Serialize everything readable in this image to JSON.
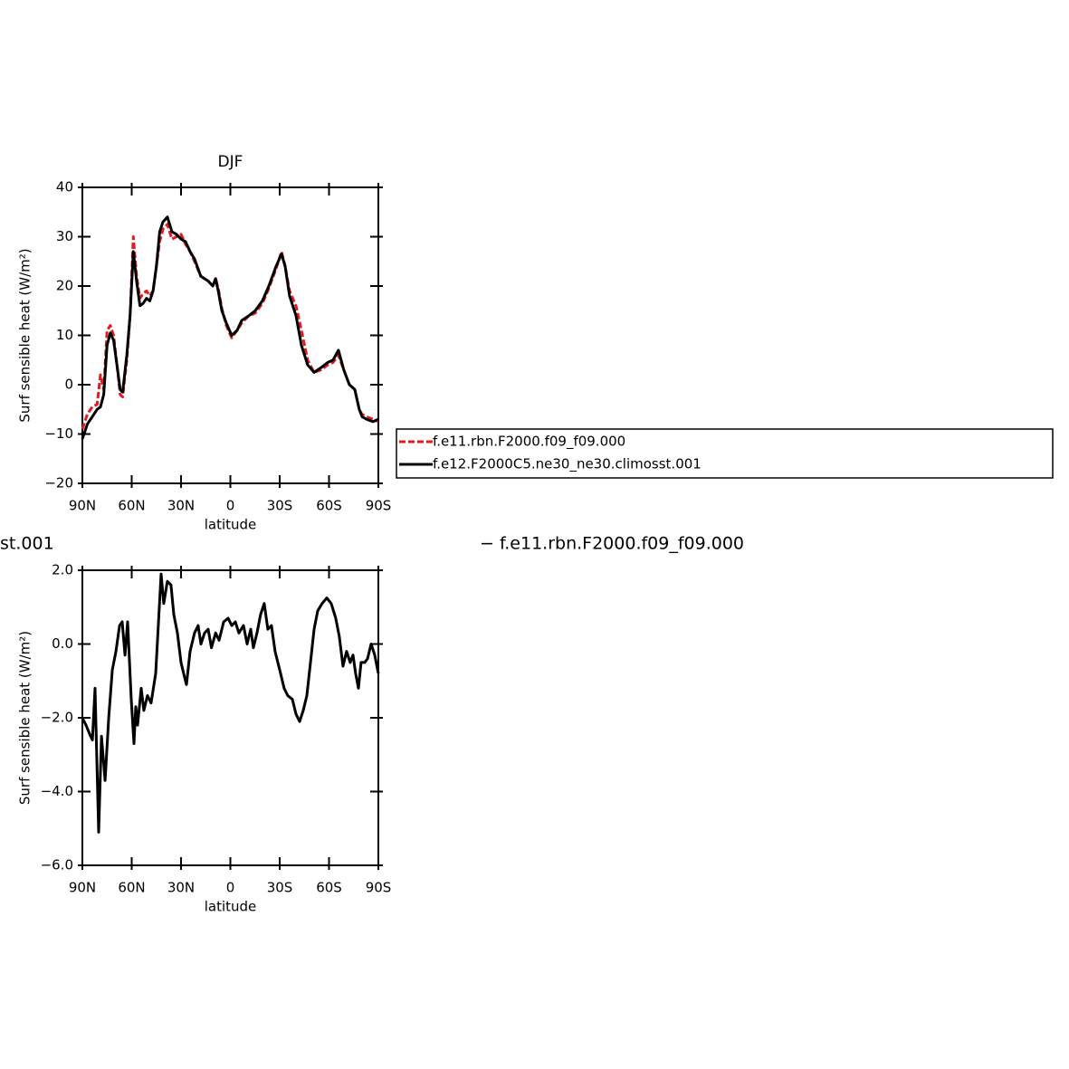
{
  "chart_data": [
    {
      "type": "line",
      "title": "DJF",
      "xlabel": "latitude",
      "ylabel": "Surf sensible heat (W/m²)",
      "x": [
        90,
        87,
        84,
        81,
        79,
        77,
        75,
        73,
        71,
        69,
        67,
        65.5,
        63,
        61,
        59,
        57,
        55,
        53,
        51,
        49,
        47,
        45,
        43,
        41,
        38.3,
        35.5,
        32.8,
        30,
        27.3,
        24.5,
        21.8,
        18,
        13.5,
        10.7,
        9,
        7.4,
        5.2,
        2.5,
        -0.8,
        -4.1,
        -6.9,
        -11.3,
        -15.1,
        -19.5,
        -23.4,
        -27.8,
        -31.1,
        -33.3,
        -36,
        -39.9,
        -43.2,
        -47,
        -50.9,
        -55.3,
        -59.1,
        -62.4,
        -65.7,
        -69,
        -72.4,
        -75.7,
        -78.4,
        -80.1,
        -82.8,
        -86.7,
        -90
      ],
      "series": [
        {
          "name": "f.e11.rbn.F2000.f09_f09.000",
          "color": "#e41a1c",
          "dash": true,
          "values": [
            -9,
            -6,
            -4.5,
            -4,
            2,
            -1,
            11,
            12,
            10,
            4,
            -2,
            -2.5,
            5,
            14,
            30,
            22,
            17.5,
            18.5,
            19,
            18,
            19,
            24,
            29,
            31.5,
            32.5,
            29.5,
            30,
            30.5,
            28.5,
            27,
            25,
            22,
            21,
            20,
            21.5,
            19.5,
            15.5,
            12,
            9.5,
            11,
            12.5,
            14,
            14.5,
            16.5,
            19.5,
            23.5,
            27,
            24,
            19,
            16,
            11,
            5,
            2.5,
            3,
            4,
            4.5,
            6,
            3,
            0,
            -1,
            -5,
            -6,
            -6.5,
            -7,
            -7.5
          ]
        },
        {
          "name": "f.e12.F2000C5.ne30_ne30.climosst.001",
          "color": "#000000",
          "dash": false,
          "values": [
            -11,
            -8,
            -6.5,
            -5,
            -4.5,
            -2,
            8,
            10.5,
            9,
            4,
            -1,
            -1.5,
            6,
            14,
            27,
            21,
            16,
            16.5,
            17.5,
            17,
            19,
            24,
            31,
            33,
            34,
            31,
            30.5,
            29.5,
            29,
            27,
            25.5,
            22,
            21,
            20,
            21.5,
            19,
            15,
            12.5,
            10,
            11,
            13,
            14,
            15,
            17,
            20,
            24,
            26.5,
            24,
            18,
            14,
            8,
            4,
            2.5,
            3.5,
            4.5,
            5,
            7,
            3,
            0,
            -1,
            -5,
            -6.5,
            -7,
            -7.5,
            -7
          ]
        }
      ],
      "xlim": [
        90,
        -90
      ],
      "xticks": [
        {
          "value": 90,
          "label": "90N"
        },
        {
          "value": 60,
          "label": "60N"
        },
        {
          "value": 30,
          "label": "30N"
        },
        0,
        {
          "value": -30,
          "label": "30S"
        },
        {
          "value": -60,
          "label": "60S"
        },
        {
          "value": -90,
          "label": "90S"
        }
      ],
      "ylim": [
        -20,
        40
      ],
      "yticks": [
        40,
        30,
        20,
        10,
        0,
        {
          "value": -10,
          "label": "−10"
        },
        {
          "value": -20,
          "label": "−20"
        }
      ]
    },
    {
      "type": "line",
      "xlabel": "latitude",
      "ylabel": "Surf sensible heat (W/m²)",
      "annotations": [
        "st.001",
        "− f.e11.rbn.F2000.f09_f09.000"
      ],
      "x": [
        90,
        87.8,
        85,
        83.9,
        82.3,
        80.1,
        78.4,
        76.2,
        74,
        71.8,
        69.6,
        67.4,
        65.8,
        64.1,
        62.5,
        60.3,
        58.6,
        57.5,
        56.4,
        54.2,
        52.6,
        50.4,
        48.2,
        45.4,
        43.8,
        42.1,
        40.5,
        38.3,
        36.1,
        34.4,
        32.2,
        30,
        28.4,
        26.7,
        24.5,
        21.8,
        19.6,
        17.9,
        15.7,
        13.5,
        11.5,
        9,
        6.9,
        4.1,
        1.4,
        -0.8,
        -3,
        -5.2,
        -8,
        -10.2,
        -12.4,
        -14,
        -16.2,
        -18.4,
        -20.6,
        -22.8,
        -25,
        -27.2,
        -30,
        -32.7,
        -34.9,
        -37.7,
        -39.9,
        -42.1,
        -44.3,
        -46.5,
        -48.7,
        -50.9,
        -53.1,
        -55.8,
        -58.6,
        -61.3,
        -64.1,
        -66.3,
        -68.5,
        -70.7,
        -72.9,
        -74.6,
        -76.2,
        -77.9,
        -79.5,
        -81.7,
        -83.4,
        -85.6,
        -87.8,
        -90
      ],
      "series": [
        {
          "color": "#000000",
          "dash": false,
          "values": [
            -2,
            -2.2,
            -2.5,
            -2.6,
            -1.2,
            -5.1,
            -2.5,
            -3.7,
            -2,
            -0.7,
            -0.2,
            0.5,
            0.6,
            -0.3,
            0.6,
            -1.5,
            -2.7,
            -1.7,
            -2.2,
            -1.2,
            -1.8,
            -1.4,
            -1.6,
            -0.8,
            0.5,
            1.9,
            1.1,
            1.7,
            1.6,
            0.8,
            0.3,
            -0.5,
            -0.8,
            -1.1,
            -0.2,
            0.3,
            0.5,
            0,
            0.3,
            0.4,
            -0.1,
            0.3,
            0.1,
            0.6,
            0.7,
            0.5,
            0.6,
            0.3,
            0.5,
            0,
            0.4,
            -0.1,
            0.3,
            0.8,
            1.1,
            0.4,
            0.5,
            -0.2,
            -0.7,
            -1.2,
            -1.4,
            -1.5,
            -1.9,
            -2.1,
            -1.8,
            -1.4,
            -0.5,
            0.4,
            0.9,
            1.1,
            1.25,
            1.1,
            0.7,
            0.2,
            -0.6,
            -0.2,
            -0.5,
            -0.3,
            -0.8,
            -1.2,
            -0.5,
            -0.5,
            -0.4,
            0,
            -0.3,
            -0.8
          ]
        }
      ],
      "xlim": [
        90,
        -90
      ],
      "xticks": [
        {
          "value": 90,
          "label": "90N"
        },
        {
          "value": 60,
          "label": "60N"
        },
        {
          "value": 30,
          "label": "30N"
        },
        0,
        {
          "value": -30,
          "label": "30S"
        },
        {
          "value": -60,
          "label": "60S"
        },
        {
          "value": -90,
          "label": "90S"
        }
      ],
      "ylim": [
        -6,
        2
      ],
      "yticks": [
        {
          "value": 2,
          "label": "2.0"
        },
        {
          "value": 0,
          "label": "0.0"
        },
        {
          "value": -2,
          "label": "−2.0"
        },
        {
          "value": -4,
          "label": "−4.0"
        },
        {
          "value": -6,
          "label": "−6.0"
        }
      ]
    }
  ]
}
